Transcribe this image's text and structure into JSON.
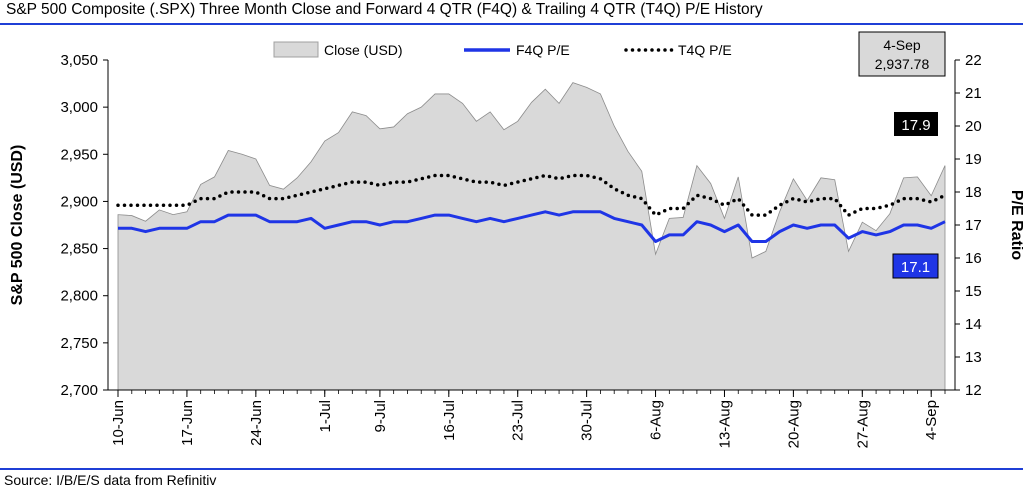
{
  "title": "S&P 500 Composite (.SPX) Three Month Close and Forward 4 QTR (F4Q) & Trailing 4 QTR (T4Q) P/E History",
  "source": "Source: I/B/E/S data from Refinitiv",
  "chart_data": {
    "type": "area",
    "ylabel": "S&P 500 Close (USD)",
    "y2label": "P/E Ratio",
    "ylim": [
      2700,
      3050
    ],
    "y2lim": [
      12,
      22
    ],
    "yticks": [
      "2,700",
      "2,750",
      "2,800",
      "2,850",
      "2,900",
      "2,950",
      "3,000",
      "3,050"
    ],
    "y2ticks": [
      "12",
      "13",
      "14",
      "15",
      "16",
      "17",
      "18",
      "19",
      "20",
      "21",
      "22"
    ],
    "xticks": [
      {
        "i": 0,
        "label": "10-Jun"
      },
      {
        "i": 5,
        "label": "17-Jun"
      },
      {
        "i": 10,
        "label": "24-Jun"
      },
      {
        "i": 15,
        "label": "1-Jul"
      },
      {
        "i": 19,
        "label": "9-Jul"
      },
      {
        "i": 24,
        "label": "16-Jul"
      },
      {
        "i": 29,
        "label": "23-Jul"
      },
      {
        "i": 34,
        "label": "30-Jul"
      },
      {
        "i": 39,
        "label": "6-Aug"
      },
      {
        "i": 44,
        "label": "13-Aug"
      },
      {
        "i": 49,
        "label": "20-Aug"
      },
      {
        "i": 54,
        "label": "27-Aug"
      },
      {
        "i": 59,
        "label": "4-Sep"
      }
    ],
    "grid": false,
    "legend_position": "top",
    "series": [
      {
        "name": "Close (USD)",
        "axis": "left",
        "kind": "area",
        "color": "#d9d9d9",
        "values": [
          2886,
          2885,
          2879,
          2891,
          2886,
          2889,
          2918,
          2926,
          2954,
          2950,
          2945,
          2917,
          2913,
          2925,
          2942,
          2964,
          2973,
          2995,
          2991,
          2977,
          2979,
          2993,
          3000,
          3014,
          3014,
          3004,
          2985,
          2995,
          2976,
          2985,
          3005,
          3019,
          3004,
          3026,
          3021,
          3014,
          2980,
          2953,
          2932,
          2844,
          2882,
          2883,
          2938,
          2919,
          2882,
          2926,
          2840,
          2847,
          2889,
          2924,
          2901,
          2925,
          2923,
          2847,
          2878,
          2869,
          2887,
          2925,
          2926,
          2906,
          2938
        ]
      },
      {
        "name": "F4Q P/E",
        "axis": "right",
        "kind": "line",
        "color": "#1f35e6",
        "values": [
          16.9,
          16.9,
          16.8,
          16.9,
          16.9,
          16.9,
          17.1,
          17.1,
          17.3,
          17.3,
          17.3,
          17.1,
          17.1,
          17.1,
          17.2,
          16.9,
          17.0,
          17.1,
          17.1,
          17.0,
          17.1,
          17.1,
          17.2,
          17.3,
          17.3,
          17.2,
          17.1,
          17.2,
          17.1,
          17.2,
          17.3,
          17.4,
          17.3,
          17.4,
          17.4,
          17.4,
          17.2,
          17.1,
          17.0,
          16.5,
          16.7,
          16.7,
          17.1,
          17.0,
          16.8,
          17.0,
          16.5,
          16.5,
          16.8,
          17.0,
          16.9,
          17.0,
          17.0,
          16.6,
          16.8,
          16.7,
          16.8,
          17.0,
          17.0,
          16.9,
          17.1
        ]
      },
      {
        "name": "T4Q P/E",
        "axis": "right",
        "kind": "dotted",
        "color": "#000000",
        "values": [
          17.6,
          17.6,
          17.6,
          17.6,
          17.6,
          17.6,
          17.8,
          17.8,
          18.0,
          18.0,
          18.0,
          17.8,
          17.8,
          17.9,
          18.0,
          18.1,
          18.2,
          18.3,
          18.3,
          18.2,
          18.3,
          18.3,
          18.4,
          18.5,
          18.5,
          18.4,
          18.3,
          18.3,
          18.2,
          18.3,
          18.4,
          18.5,
          18.4,
          18.5,
          18.5,
          18.4,
          18.1,
          17.9,
          17.8,
          17.3,
          17.5,
          17.5,
          17.9,
          17.8,
          17.6,
          17.8,
          17.3,
          17.3,
          17.6,
          17.8,
          17.7,
          17.8,
          17.8,
          17.3,
          17.5,
          17.5,
          17.6,
          17.8,
          17.8,
          17.7,
          17.9
        ]
      }
    ],
    "annotations": {
      "date_box": {
        "line1": "4-Sep",
        "line2": "2,937.78"
      },
      "t4q_label": "17.9",
      "f4q_label": "17.1"
    }
  },
  "colors": {
    "accent_rule": "#1f3fd6",
    "label_dark": "#000000",
    "label_blue": "#1f35e6",
    "date_box_bg": "#d9d9d9"
  }
}
